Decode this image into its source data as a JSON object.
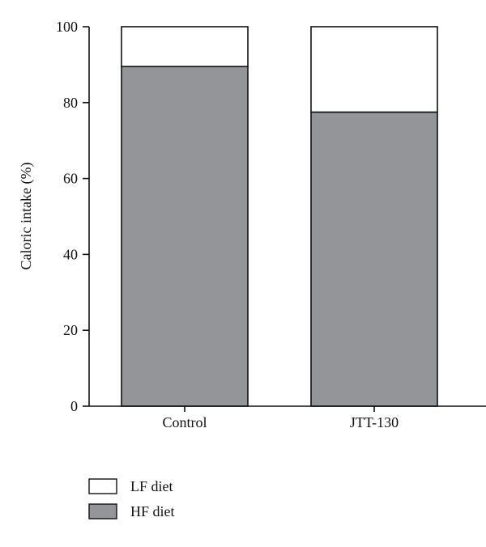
{
  "chart_data": {
    "type": "bar",
    "stacked": true,
    "categories": [
      "Control",
      "JTT-130"
    ],
    "series": [
      {
        "name": "HF diet",
        "values": [
          89.5,
          77.5
        ],
        "color": "#939598"
      },
      {
        "name": "LF diet",
        "values": [
          10.5,
          22.5
        ],
        "color": "#ffffff"
      }
    ],
    "ylabel": "Caloric intake (%)",
    "xlabel": "",
    "ylim": [
      0,
      100
    ],
    "yticks": [
      0,
      20,
      40,
      60,
      80,
      100
    ],
    "grid": false,
    "legend": {
      "placement": "bottom-left",
      "entries": [
        {
          "label": "LF diet",
          "color": "#ffffff"
        },
        {
          "label": "HF diet",
          "color": "#939598"
        }
      ]
    }
  }
}
